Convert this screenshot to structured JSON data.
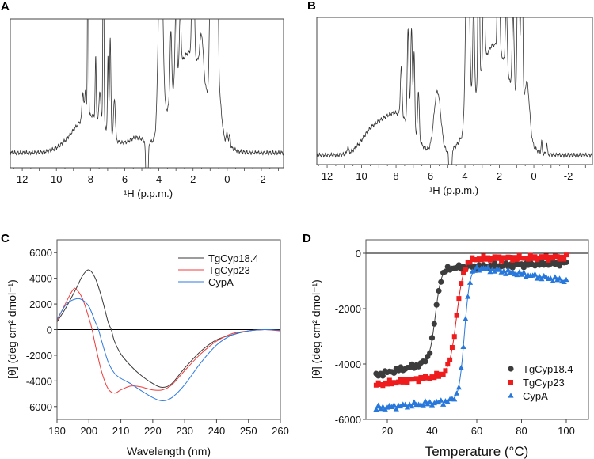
{
  "chart_data": [
    {
      "panel": "A",
      "type": "line",
      "xlabel": "¹H (p.p.m.)",
      "xlim": [
        12.7,
        -3.3
      ],
      "xticks": [
        "12",
        "10",
        "8",
        "6",
        "4",
        "2",
        "0",
        "-2"
      ],
      "xtick_values": [
        12,
        10,
        8,
        6,
        4,
        2,
        0,
        -2
      ],
      "note": "1D 1H NMR spectrum, intensity in arbitrary units (top clipped)",
      "peaks": [
        [
          8.15,
          1.6,
          0.03
        ],
        [
          7.25,
          1.6,
          0.03
        ],
        [
          7.7,
          0.45,
          0.03
        ],
        [
          6.85,
          0.7,
          0.04
        ],
        [
          6.98,
          0.55,
          0.03
        ],
        [
          8.45,
          0.2,
          0.05
        ],
        [
          8.3,
          0.2,
          0.04
        ],
        [
          7.45,
          0.22,
          0.05
        ],
        [
          6.6,
          0.3,
          0.05
        ],
        [
          8.0,
          0.28,
          1.0
        ],
        [
          5.3,
          0.1,
          0.5
        ],
        [
          2.2,
          0.75,
          1.0
        ],
        [
          3.9,
          1.6,
          0.12
        ],
        [
          3.3,
          0.5,
          0.05
        ],
        [
          3.0,
          0.6,
          0.05
        ],
        [
          2.75,
          0.4,
          0.05
        ],
        [
          2.0,
          1.2,
          0.06
        ],
        [
          1.5,
          0.3,
          0.1
        ],
        [
          1.0,
          0.4,
          0.06
        ],
        [
          0.85,
          1.6,
          0.1
        ],
        [
          0.6,
          1.6,
          0.06
        ],
        [
          0.5,
          0.3,
          0.15
        ],
        [
          0.0,
          0.08,
          0.05
        ],
        [
          -0.15,
          0.08,
          0.04
        ],
        [
          4.7,
          -0.7,
          0.05
        ]
      ]
    },
    {
      "panel": "B",
      "type": "line",
      "xlabel": "¹H (p.p.m.)",
      "xlim": [
        12.6,
        -3.4
      ],
      "xticks": [
        "12",
        "10",
        "8",
        "6",
        "4",
        "2",
        "0",
        "-2"
      ],
      "xtick_values": [
        12,
        10,
        8,
        6,
        4,
        2,
        0,
        -2
      ],
      "note": "1D 1H NMR spectrum, intensity in arbitrary units (top clipped)",
      "peaks": [
        [
          10.8,
          0.05,
          0.04
        ],
        [
          9.5,
          0.12,
          0.6
        ],
        [
          8.0,
          0.3,
          0.9
        ],
        [
          7.3,
          0.7,
          0.05
        ],
        [
          7.1,
          0.75,
          0.05
        ],
        [
          6.95,
          0.6,
          0.04
        ],
        [
          7.7,
          0.35,
          0.05
        ],
        [
          6.7,
          0.35,
          0.05
        ],
        [
          5.6,
          0.45,
          0.2
        ],
        [
          2.3,
          0.8,
          1.0
        ],
        [
          3.85,
          1.6,
          0.1
        ],
        [
          3.5,
          0.7,
          0.05
        ],
        [
          3.2,
          1.6,
          0.04
        ],
        [
          2.9,
          0.7,
          0.05
        ],
        [
          2.05,
          1.6,
          0.05
        ],
        [
          1.6,
          0.5,
          0.05
        ],
        [
          1.2,
          0.6,
          0.06
        ],
        [
          0.9,
          1.6,
          0.06
        ],
        [
          0.7,
          1.6,
          0.05
        ],
        [
          0.4,
          0.4,
          0.15
        ],
        [
          -0.45,
          0.08,
          0.03
        ],
        [
          -0.75,
          0.08,
          0.03
        ],
        [
          4.85,
          -0.7,
          0.05
        ]
      ]
    },
    {
      "panel": "C",
      "type": "line",
      "xlabel": "Wavelength (nm)",
      "ylabel": "[θ] (deg cm² dmol⁻¹)",
      "xlim": [
        190,
        260
      ],
      "ylim": [
        -7000,
        7000
      ],
      "xticks": [
        "190",
        "200",
        "210",
        "220",
        "230",
        "240",
        "250",
        "260"
      ],
      "xtick_values": [
        190,
        200,
        210,
        220,
        230,
        240,
        250,
        260
      ],
      "yticks": [
        "6000",
        "4000",
        "2000",
        "0",
        "-2000",
        "-4000",
        "-6000"
      ],
      "ytick_values": [
        6000,
        4000,
        2000,
        0,
        -2000,
        -4000,
        -6000
      ],
      "legend_position": "top-right",
      "series": [
        {
          "name": "TgCyp18.4",
          "color": "#3a3a3a",
          "x": [
            190,
            193,
            196,
            198,
            200,
            202,
            204,
            206,
            207,
            208,
            210,
            213,
            216,
            220,
            223,
            226,
            230,
            235,
            240,
            245,
            250,
            255,
            260
          ],
          "y": [
            600,
            1800,
            3200,
            4200,
            4650,
            4000,
            2500,
            600,
            0,
            -900,
            -1900,
            -2800,
            -3500,
            -4200,
            -4500,
            -4200,
            -3000,
            -1700,
            -800,
            -400,
            -100,
            0,
            -50
          ]
        },
        {
          "name": "TgCyp23",
          "color": "#f03c3c",
          "x": [
            190,
            193,
            195,
            196,
            198,
            200,
            201,
            202,
            204,
            206,
            208,
            210,
            213,
            216,
            220,
            223,
            226,
            230,
            235,
            240,
            245,
            250,
            255,
            260
          ],
          "y": [
            700,
            2200,
            3100,
            3150,
            2400,
            900,
            0,
            -1200,
            -3300,
            -4600,
            -4950,
            -4700,
            -4400,
            -4450,
            -4700,
            -4700,
            -4300,
            -3200,
            -1900,
            -900,
            -300,
            -100,
            0,
            -100
          ]
        },
        {
          "name": "CypA",
          "color": "#2f7ae0",
          "x": [
            190,
            193,
            196,
            198,
            200,
            202,
            203,
            204,
            206,
            208,
            210,
            213,
            216,
            220,
            223,
            226,
            230,
            235,
            240,
            245,
            250,
            255,
            260
          ],
          "y": [
            800,
            2000,
            2400,
            2300,
            1800,
            600,
            0,
            -900,
            -2500,
            -3400,
            -3800,
            -4200,
            -4700,
            -5300,
            -5550,
            -5300,
            -4300,
            -2600,
            -1200,
            -400,
            -100,
            0,
            -50
          ]
        }
      ]
    },
    {
      "panel": "D",
      "type": "scatter",
      "xlabel": "Temperature (°C)",
      "ylabel": "[θ] (deg cm² dmol⁻¹)",
      "xlim": [
        10,
        110
      ],
      "ylim": [
        -6000,
        500
      ],
      "xticks": [
        "20",
        "40",
        "60",
        "80",
        "100"
      ],
      "xtick_values": [
        20,
        40,
        60,
        80,
        100
      ],
      "yticks": [
        "0",
        "-2000",
        "-4000",
        "-6000"
      ],
      "ytick_values": [
        0,
        -2000,
        -4000,
        -6000
      ],
      "legend_position": "bottom-right",
      "x_range": [
        15,
        100
      ],
      "series": [
        {
          "name": "TgCyp18.4",
          "color": "#3c3c3c",
          "marker": "circle",
          "folded_start": -4400,
          "folded_end": -3900,
          "unfolded_start": -550,
          "unfolded_end": -350,
          "tm": 41.5,
          "width": 1.3
        },
        {
          "name": "TgCyp23",
          "color": "#ee1c1c",
          "marker": "square",
          "folded_start": -4750,
          "folded_end": -4350,
          "unfolded_start": -200,
          "unfolded_end": -150,
          "tm": 51,
          "width": 1.6
        },
        {
          "name": "CypA",
          "color": "#2878dc",
          "marker": "triangle",
          "folded_start": -5600,
          "folded_end": -5300,
          "unfolded_start": -450,
          "unfolded_end": -1000,
          "tm": 54.5,
          "width": 1.2
        }
      ]
    }
  ],
  "panel_labels": [
    "A",
    "B",
    "C",
    "D"
  ]
}
